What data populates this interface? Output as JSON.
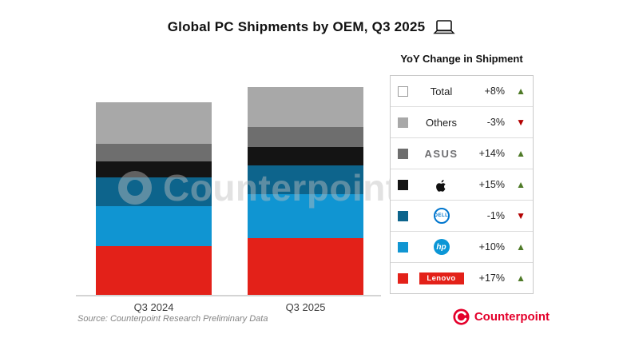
{
  "title": {
    "text": "Global PC Shipments by OEM, Q3 2025"
  },
  "legend": {
    "heading": "YoY Change in Shipment",
    "rows": [
      {
        "name": "Total",
        "change": "+8%",
        "direction": "up",
        "swatch": "#ffffff"
      },
      {
        "name": "Others",
        "change": "-3%",
        "direction": "down",
        "swatch": "#a8a8a8"
      },
      {
        "name": "ASUS",
        "change": "+14%",
        "direction": "up",
        "swatch": "#6e6e6e"
      },
      {
        "name": "Apple",
        "change": "+15%",
        "direction": "up",
        "swatch": "#141414"
      },
      {
        "name": "Dell",
        "change": "-1%",
        "direction": "down",
        "swatch": "#0d648c",
        "logo_text": "DELL"
      },
      {
        "name": "HP",
        "change": "+10%",
        "direction": "up",
        "swatch": "#1095d2",
        "logo_text": "hp"
      },
      {
        "name": "Lenovo",
        "change": "+17%",
        "direction": "up",
        "swatch": "#e32119",
        "logo_text": "Lenovo"
      }
    ]
  },
  "chart_data": {
    "type": "bar",
    "stacked": true,
    "title": "Global PC Shipments by OEM, Q3 2025",
    "categories": [
      "Q3 2024",
      "Q3 2025"
    ],
    "series": [
      {
        "name": "Lenovo",
        "color": "#e32119",
        "values": [
          62,
          72.5
        ]
      },
      {
        "name": "HP",
        "color": "#1095d2",
        "values": [
          50,
          55
        ]
      },
      {
        "name": "Dell",
        "color": "#0d648c",
        "values": [
          36,
          35.5
        ]
      },
      {
        "name": "Apple",
        "color": "#141414",
        "values": [
          20,
          23
        ]
      },
      {
        "name": "ASUS",
        "color": "#6e6e6e",
        "values": [
          22,
          25
        ]
      },
      {
        "name": "Others",
        "color": "#a8a8a8",
        "values": [
          52,
          50.5
        ]
      }
    ],
    "yoy_change": {
      "Total": "+8%",
      "Others": "-3%",
      "ASUS": "+14%",
      "Apple": "+15%",
      "Dell": "-1%",
      "HP": "+10%",
      "Lenovo": "+17%"
    },
    "value_note": "relative units estimated from bar heights; chart shows no numeric axis",
    "xlabel": "",
    "ylabel": "",
    "grid": false,
    "legend_position": "right"
  },
  "footer": {
    "source": "Source: Counterpoint Research Preliminary Data",
    "brand": "Counterpoint"
  },
  "watermark": "Counterpoint",
  "colors": {
    "up": "#4e7a27",
    "down": "#b30000",
    "brand": "#e4002b"
  }
}
